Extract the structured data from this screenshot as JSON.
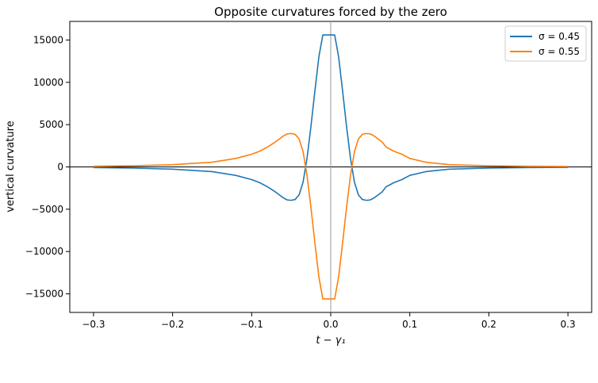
{
  "chart_data": {
    "type": "line",
    "title": "Opposite curvatures forced by the zero",
    "xlabel": "t − γ₁",
    "ylabel": "vertical curvature",
    "xlim": [
      -0.33,
      0.33
    ],
    "ylim": [
      -17200,
      17200
    ],
    "xticks": [
      -0.3,
      -0.2,
      -0.1,
      0.0,
      0.1,
      0.2,
      0.3
    ],
    "xtick_labels": [
      "−0.3",
      "−0.2",
      "−0.1",
      "0.0",
      "0.1",
      "0.2",
      "0.3"
    ],
    "yticks": [
      -15000,
      -10000,
      -5000,
      0,
      5000,
      10000,
      15000
    ],
    "ytick_labels": [
      "−15000",
      "−10000",
      "−5000",
      "0",
      "5000",
      "10000",
      "15000"
    ],
    "reference_lines": {
      "horizontal_y": 0,
      "vertical_x": 0
    },
    "grid": false,
    "legend_position": "top-right",
    "series": [
      {
        "name": "σ = 0.45",
        "color": "#1f77b4",
        "x": [
          -0.3,
          -0.25,
          -0.2,
          -0.15,
          -0.12,
          -0.1,
          -0.09,
          -0.08,
          -0.07,
          -0.065,
          -0.06,
          -0.055,
          -0.05,
          -0.045,
          -0.04,
          -0.035,
          -0.03,
          -0.025,
          -0.02,
          -0.015,
          -0.01,
          -0.005,
          0.0,
          0.005,
          0.01,
          0.015,
          0.02,
          0.025,
          0.03,
          0.035,
          0.04,
          0.045,
          0.05,
          0.055,
          0.06,
          0.065,
          0.07,
          0.08,
          0.09,
          0.1,
          0.12,
          0.15,
          0.2,
          0.25,
          0.3
        ],
        "values": [
          -80,
          -140,
          -260,
          -560,
          -1000,
          -1500,
          -1850,
          -2350,
          -2950,
          -3300,
          -3650,
          -3900,
          -3950,
          -3850,
          -3300,
          -1800,
          1000,
          4800,
          9000,
          13000,
          15600,
          15600,
          15600,
          15600,
          13000,
          9000,
          4800,
          1000,
          -1800,
          -3300,
          -3850,
          -3950,
          -3900,
          -3650,
          -3300,
          -2950,
          -2350,
          -1850,
          -1500,
          -1000,
          -560,
          -260,
          -140,
          -80,
          -50
        ]
      },
      {
        "name": "σ = 0.55",
        "color": "#ff7f0e",
        "x": [
          -0.3,
          -0.25,
          -0.2,
          -0.15,
          -0.12,
          -0.1,
          -0.09,
          -0.08,
          -0.07,
          -0.065,
          -0.06,
          -0.055,
          -0.05,
          -0.045,
          -0.04,
          -0.035,
          -0.03,
          -0.025,
          -0.02,
          -0.015,
          -0.01,
          -0.005,
          0.0,
          0.005,
          0.01,
          0.015,
          0.02,
          0.025,
          0.03,
          0.035,
          0.04,
          0.045,
          0.05,
          0.055,
          0.06,
          0.065,
          0.07,
          0.08,
          0.09,
          0.1,
          0.12,
          0.15,
          0.2,
          0.25,
          0.3
        ],
        "values": [
          80,
          140,
          260,
          560,
          1000,
          1500,
          1850,
          2350,
          2950,
          3300,
          3650,
          3900,
          3950,
          3850,
          3300,
          1800,
          -1000,
          -4800,
          -9000,
          -13000,
          -15600,
          -15600,
          -15600,
          -15600,
          -13000,
          -9000,
          -4800,
          -1000,
          1800,
          3300,
          3850,
          3950,
          3900,
          3650,
          3300,
          2950,
          2350,
          1850,
          1500,
          1000,
          560,
          260,
          140,
          80,
          50
        ]
      }
    ]
  }
}
